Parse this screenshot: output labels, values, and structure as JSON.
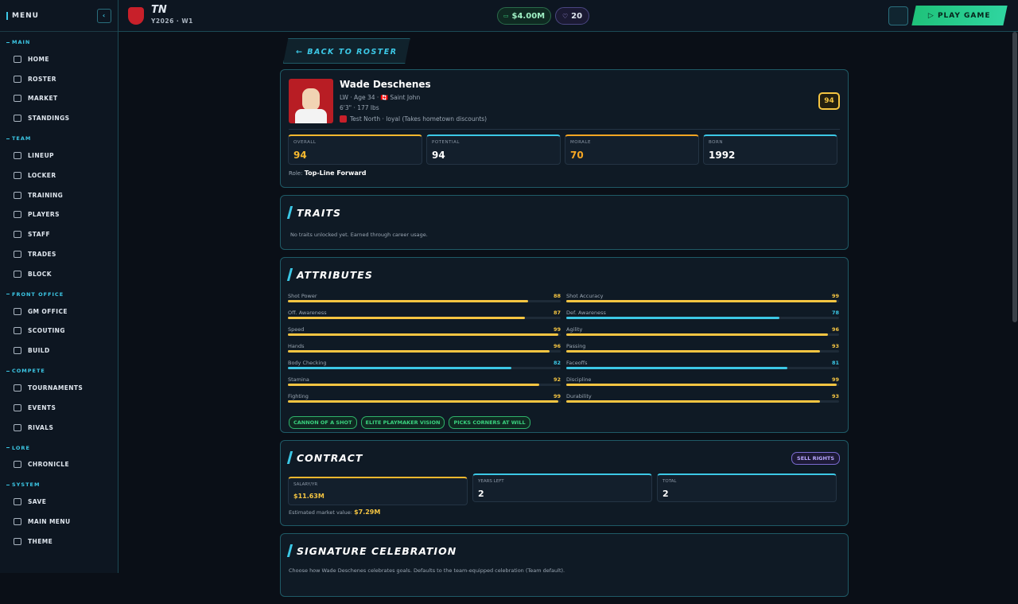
{
  "sidebar": {
    "menu": "MENU",
    "sections": [
      {
        "title": "MAIN",
        "items": [
          "HOME",
          "ROSTER",
          "MARKET",
          "STANDINGS"
        ]
      },
      {
        "title": "TEAM",
        "items": [
          "LINEUP",
          "LOCKER",
          "TRAINING",
          "PLAYERS",
          "STAFF",
          "TRADES",
          "BLOCK"
        ]
      },
      {
        "title": "FRONT OFFICE",
        "items": [
          "GM OFFICE",
          "SCOUTING",
          "BUILD"
        ]
      },
      {
        "title": "COMPETE",
        "items": [
          "TOURNAMENTS",
          "EVENTS",
          "RIVALS"
        ]
      },
      {
        "title": "LORE",
        "items": [
          "CHRONICLE"
        ]
      },
      {
        "title": "SYSTEM",
        "items": [
          "SAVE",
          "MAIN MENU",
          "THEME"
        ]
      }
    ]
  },
  "topbar": {
    "team": "TN",
    "season": "Y2026 · W1",
    "cash": "$4.00M",
    "gems": "20",
    "play": "PLAY GAME"
  },
  "back": "← BACK TO ROSTER",
  "player": {
    "name": "Wade Deschenes",
    "info": "LW · Age 34 · 🇨🇦 Saint John",
    "body": "6'3\" · 177 lbs",
    "team": "Test North · loyal (Takes hometown discounts)",
    "badge": "94",
    "stats": [
      {
        "label": "OVERALL",
        "value": "94",
        "color": "#f5b82e",
        "text_color": "#f5b82e"
      },
      {
        "label": "POTENTIAL",
        "value": "94",
        "color": "#3cc8e6",
        "text_color": "#ffffff"
      },
      {
        "label": "MORALE",
        "value": "70",
        "color": "#f5a623",
        "text_color": "#f5a623"
      },
      {
        "label": "BORN",
        "value": "1992",
        "color": "#3cc8e6",
        "text_color": "#ffffff"
      }
    ],
    "role_label": "Role:",
    "role": "Top-Line Forward"
  },
  "traits": {
    "title": "TRAITS",
    "text": "No traits unlocked yet. Earned through career usage."
  },
  "attributes": {
    "title": "ATTRIBUTES",
    "max": 100,
    "left": [
      {
        "name": "Shot Power",
        "value": 88,
        "color": "#f5c542"
      },
      {
        "name": "Off. Awareness",
        "value": 87,
        "color": "#f5c542"
      },
      {
        "name": "Speed",
        "value": 99,
        "color": "#f5c542"
      },
      {
        "name": "Hands",
        "value": 96,
        "color": "#f5c542"
      },
      {
        "name": "Body Checking",
        "value": 82,
        "color": "#3cc8e6"
      },
      {
        "name": "Stamina",
        "value": 92,
        "color": "#f5c542"
      },
      {
        "name": "Fighting",
        "value": 99,
        "color": "#f5c542"
      }
    ],
    "right": [
      {
        "name": "Shot Accuracy",
        "value": 99,
        "color": "#f5c542"
      },
      {
        "name": "Def. Awareness",
        "value": 78,
        "color": "#3cc8e6"
      },
      {
        "name": "Agility",
        "value": 96,
        "color": "#f5c542"
      },
      {
        "name": "Passing",
        "value": 93,
        "color": "#f5c542"
      },
      {
        "name": "Faceoffs",
        "value": 81,
        "color": "#3cc8e6"
      },
      {
        "name": "Discipline",
        "value": 99,
        "color": "#f5c542"
      },
      {
        "name": "Durability",
        "value": 93,
        "color": "#f5c542"
      }
    ],
    "tags": [
      "CANNON OF A SHOT",
      "ELITE PLAYMAKER VISION",
      "PICKS CORNERS AT WILL"
    ]
  },
  "contract": {
    "title": "CONTRACT",
    "sell": "SELL RIGHTS",
    "cards": [
      {
        "label": "SALARY/YR",
        "value": "$11.63M",
        "color": "#f5b82e",
        "text_color": "#f5c542"
      },
      {
        "label": "YEARS LEFT",
        "value": "2",
        "color": "#3cc8e6",
        "text_color": "#ffffff"
      },
      {
        "label": "TOTAL",
        "value": "2",
        "color": "#3cc8e6",
        "text_color": "#ffffff"
      }
    ],
    "market_label": "Estimated market value:",
    "market": "$7.29M"
  },
  "celebration": {
    "title": "SIGNATURE CELEBRATION",
    "text": "Choose how Wade Deschenes celebrates goals. Defaults to the team-equipped celebration (Team default)."
  }
}
